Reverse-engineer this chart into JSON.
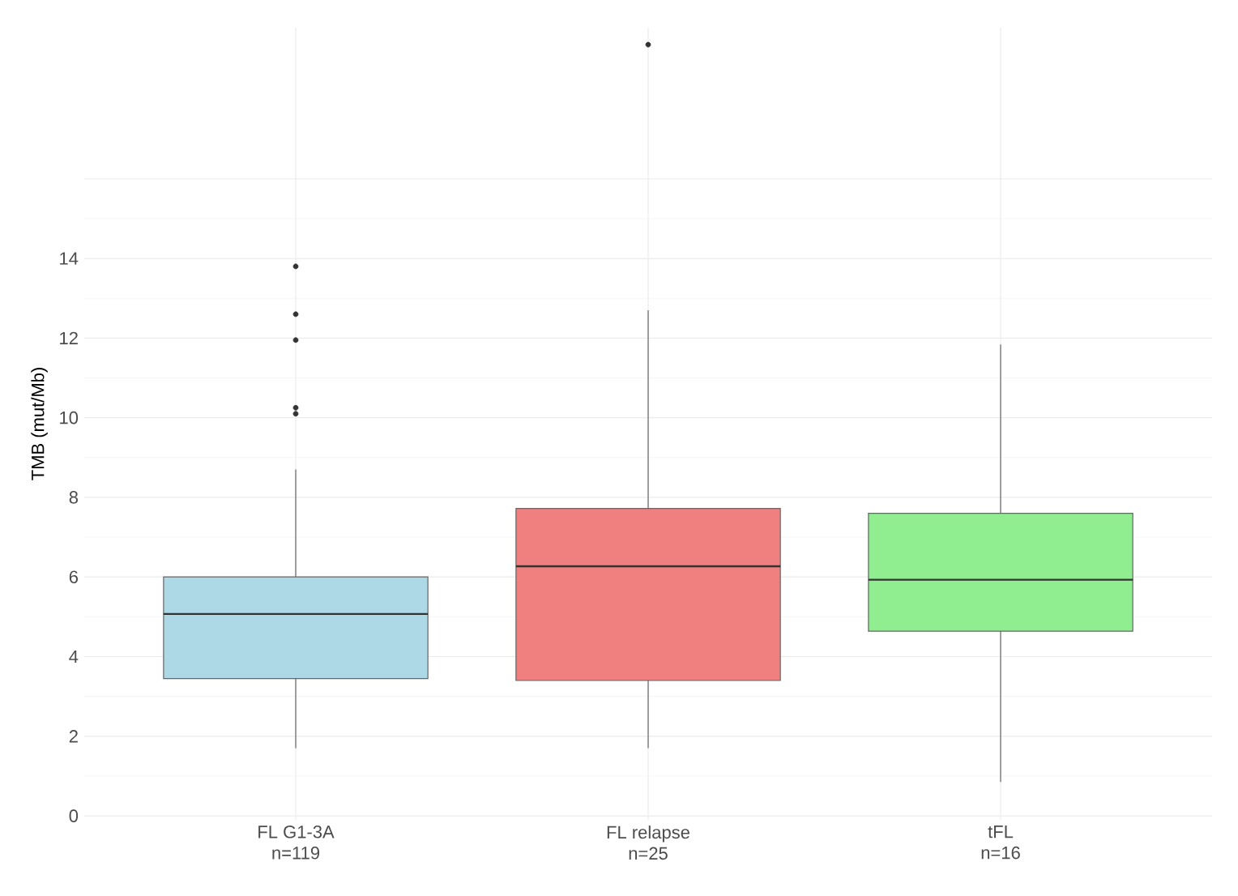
{
  "chart_data": {
    "type": "box",
    "ylabel": "TMB (mut/Mb)",
    "categories": [
      "FL G1-3A n=119",
      "FL relapse n=25",
      "tFL n=16"
    ],
    "colors": [
      "#add8e6",
      "#f08080",
      "#90ee90"
    ],
    "boxes": [
      {
        "low": 1.7,
        "q1": 3.45,
        "median": 5.07,
        "q3": 6.0,
        "high": 8.7,
        "outliers": [
          13.8,
          12.6,
          11.95,
          10.25,
          10.1
        ]
      },
      {
        "low": 1.7,
        "q1": 3.4,
        "median": 6.27,
        "q3": 7.72,
        "high": 12.7,
        "outliers": [
          19.37
        ]
      },
      {
        "low": 0.85,
        "q1": 4.64,
        "median": 5.93,
        "q3": 7.6,
        "high": 11.84
      }
    ],
    "ylim": [
      -0.1,
      19.8
    ],
    "yticks": [
      0,
      2,
      4,
      6,
      8,
      10,
      12,
      14,
      {
        "value": 16,
        "label": null
      }
    ],
    "grid": true
  }
}
